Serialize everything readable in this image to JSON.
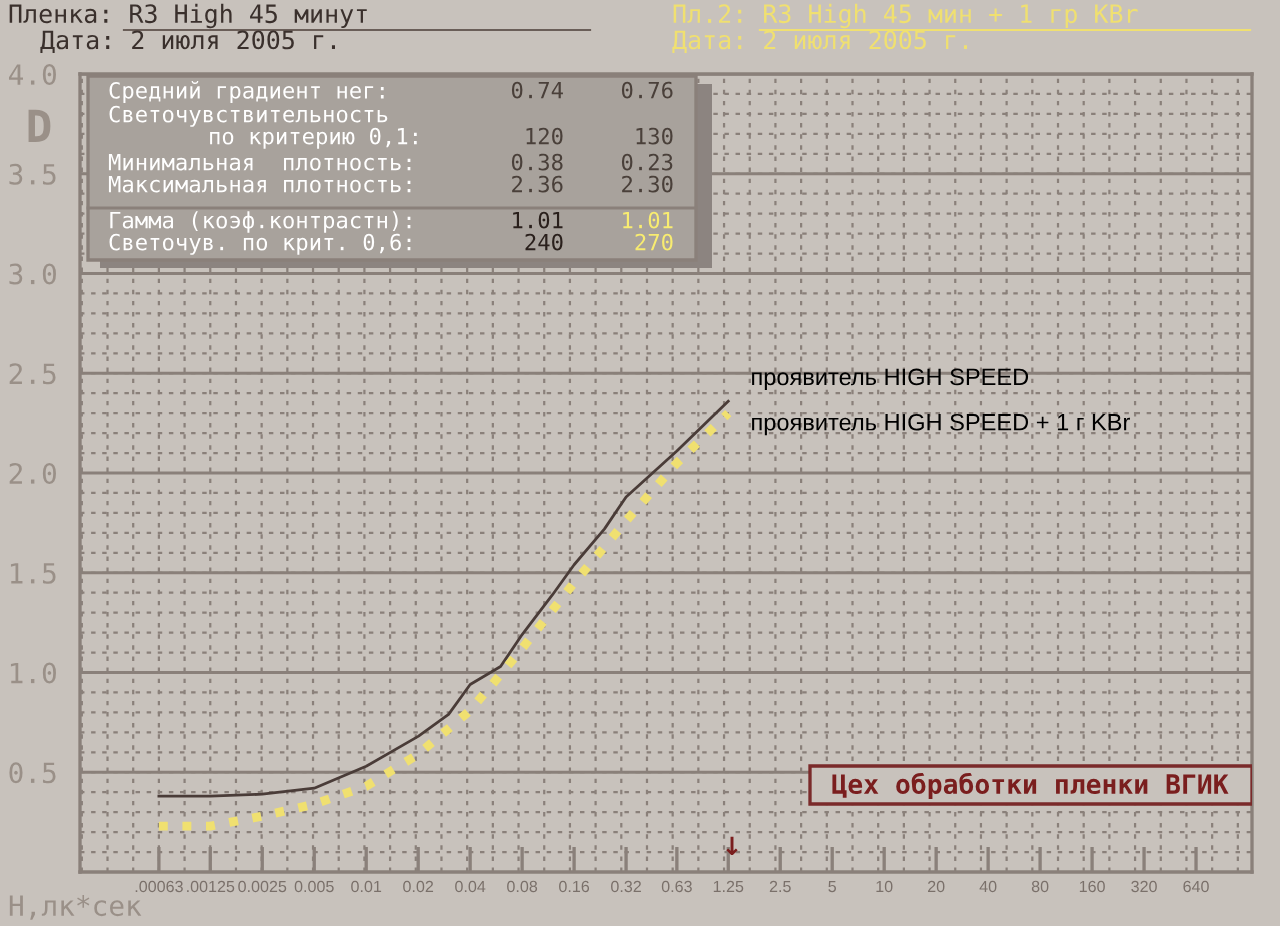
{
  "chart_data": {
    "type": "line",
    "ylabel": "D",
    "xlabel": "H,лк*сек",
    "log": "x",
    "xlim": [
      0.00022,
      1350
    ],
    "xticks": [
      {
        "value": 0.00063,
        "label": ".00063"
      },
      {
        "value": 0.00125,
        "label": ".00125"
      },
      0.0025,
      0.005,
      0.01,
      0.02,
      0.04,
      0.08,
      0.16,
      0.32,
      0.63,
      1.25,
      2.5,
      5,
      10,
      20,
      40,
      80,
      160,
      320,
      640
    ],
    "ylim": [
      0,
      4
    ],
    "yticks": [
      {
        "value": 0.5,
        "label": "0.5"
      },
      {
        "value": 1,
        "label": "1.0"
      },
      {
        "value": 1.5,
        "label": "1.5"
      },
      {
        "value": 2,
        "label": "2.0"
      },
      {
        "value": 2.5,
        "label": "2.5"
      },
      {
        "value": 3,
        "label": "3.0"
      },
      {
        "value": 3.5,
        "label": "3.5"
      },
      {
        "value": 4,
        "label": "4.0"
      }
    ],
    "grid": true,
    "marker": "none",
    "series": [
      {
        "name": "проявитель HIGH SPEED",
        "color": "#4a3c38",
        "line_style": "solid",
        "x": [
          0.00063,
          0.00125,
          0.0025,
          0.005,
          0.01,
          0.02,
          0.03,
          0.04,
          0.06,
          0.08,
          0.12,
          0.16,
          0.24,
          0.32,
          0.63,
          1.25
        ],
        "values": [
          0.38,
          0.38,
          0.39,
          0.42,
          0.53,
          0.68,
          0.79,
          0.94,
          1.03,
          1.19,
          1.39,
          1.54,
          1.72,
          1.88,
          2.11,
          2.36
        ]
      },
      {
        "name": "проявитель HIGH SPEED + 1 г KBr",
        "color": "#f0e070",
        "line_style": "dotted",
        "x": [
          0.00063,
          0.00125,
          0.0025,
          0.005,
          0.01,
          0.02,
          0.04,
          0.06,
          0.08,
          0.16,
          0.24,
          0.32,
          0.63,
          1.25
        ],
        "values": [
          0.23,
          0.23,
          0.28,
          0.34,
          0.43,
          0.59,
          0.81,
          0.99,
          1.12,
          1.45,
          1.63,
          1.76,
          2.05,
          2.3
        ]
      }
    ],
    "annotations": [
      "Пленка: R3 High 45 минут",
      "Дата: 2 июля 2005 г.",
      "Пл.2: R3 High 45 мин + 1 гр KBr",
      "Дата: 2 июля 2005 г.",
      "Цех обработки пленки ВГИК",
      "↓",
      "Средний градиент нег:",
      "0.74",
      "0.76",
      "Светочувствительность",
      "по критерию 0,1:",
      "120",
      "130",
      "Минимальная  плотность:",
      "0.38",
      "0.23",
      "Максимальная плотность:",
      "2.36",
      "2.30",
      "Гамма (коэф.контрастн):",
      "1.01",
      "1.01",
      "Светочув. по крит. 0,6:",
      "240",
      "270"
    ]
  }
}
